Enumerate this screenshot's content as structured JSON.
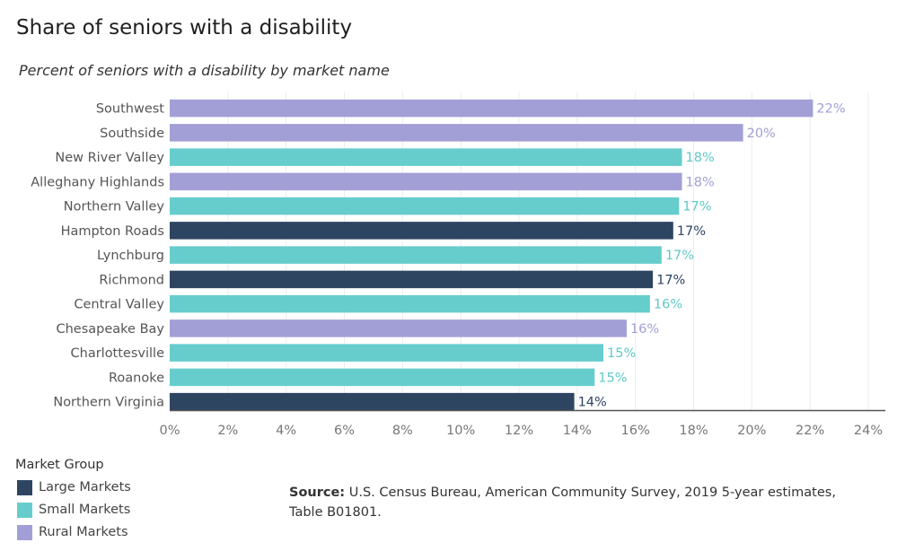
{
  "title": "Share of seniors with a disability",
  "subtitle": "Percent of seniors with a disability by market name",
  "legend": {
    "title": "Market Group",
    "items": [
      {
        "label": "Large Markets",
        "color": "#2e4562"
      },
      {
        "label": "Small Markets",
        "color": "#66cdcc"
      },
      {
        "label": "Rural Markets",
        "color": "#a29fd6"
      }
    ]
  },
  "source": {
    "label": "Source:",
    "text": " U.S. Census Bureau, American Community Survey, 2019 5-year estimates, Table B01801."
  },
  "chart_data": {
    "type": "bar",
    "orientation": "horizontal",
    "categories": [
      "Southwest",
      "Southside",
      "New River Valley",
      "Alleghany Highlands",
      "Northern Valley",
      "Hampton Roads",
      "Lynchburg",
      "Richmond",
      "Central Valley",
      "Chesapeake Bay",
      "Charlottesville",
      "Roanoke",
      "Northern Virginia"
    ],
    "values": [
      22.1,
      19.7,
      17.6,
      17.6,
      17.5,
      17.3,
      16.9,
      16.6,
      16.5,
      15.7,
      14.9,
      14.6,
      13.9
    ],
    "labels": [
      "22%",
      "20%",
      "18%",
      "18%",
      "17%",
      "17%",
      "17%",
      "17%",
      "16%",
      "16%",
      "15%",
      "15%",
      "14%"
    ],
    "groups": [
      "Rural Markets",
      "Rural Markets",
      "Small Markets",
      "Rural Markets",
      "Small Markets",
      "Large Markets",
      "Small Markets",
      "Large Markets",
      "Small Markets",
      "Rural Markets",
      "Small Markets",
      "Small Markets",
      "Large Markets"
    ],
    "xlim": [
      0,
      24
    ],
    "xticks": [
      0,
      2,
      4,
      6,
      8,
      10,
      12,
      14,
      16,
      18,
      20,
      22,
      24
    ],
    "xtick_labels": [
      "0%",
      "2%",
      "4%",
      "6%",
      "8%",
      "10%",
      "12%",
      "14%",
      "16%",
      "18%",
      "20%",
      "22%",
      "24%"
    ],
    "xlabel": "",
    "ylabel": "",
    "grid": true,
    "legend_placement": "bottom-left"
  }
}
